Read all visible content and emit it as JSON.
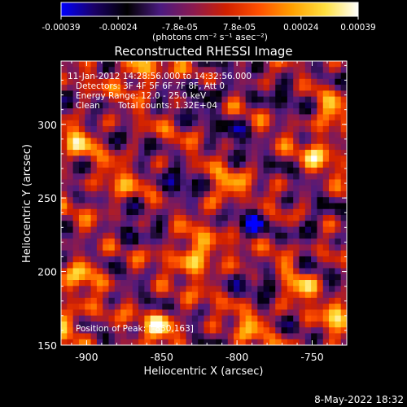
{
  "chart_data": {
    "type": "heatmap",
    "title": "Reconstructed RHESSI Image",
    "xlabel": "Heliocentric X (arcsec)",
    "ylabel": "Heliocentric Y (arcsec)",
    "xlim": [
      -917,
      -727
    ],
    "ylim": [
      150,
      343
    ],
    "x_ticks": [
      -900,
      -850,
      -800,
      -750
    ],
    "y_ticks": [
      150,
      200,
      250,
      300
    ],
    "grid_cols": 48,
    "grid_rows": 48,
    "colorbar": {
      "range": [
        -0.00039,
        0.00039
      ],
      "tick_values": [
        -0.00039,
        -0.00024,
        -7.8e-05,
        7.8e-05,
        0.00024,
        0.00039
      ],
      "tick_labels": [
        "-0.00039",
        "-0.00024",
        "-7.8e-05",
        "7.8e-05",
        "0.00024",
        "0.00039"
      ],
      "units": "(photons cm⁻² s⁻¹ asec⁻²)"
    },
    "colormap": [
      "#0000ff",
      "#1a0066",
      "#000000",
      "#4a1a80",
      "#8a1a50",
      "#d02000",
      "#ff5000",
      "#ffa000",
      "#ffe040",
      "#ffffff"
    ],
    "hotspots": [
      {
        "x": -850,
        "y": 163,
        "amplitude": 1.0
      },
      {
        "x": -865,
        "y": 335,
        "amplitude": 0.95
      },
      {
        "x": -900,
        "y": 200,
        "amplitude": 0.8
      },
      {
        "x": -912,
        "y": 165,
        "amplitude": 0.85
      },
      {
        "x": -832,
        "y": 215,
        "amplitude": 0.85
      },
      {
        "x": -822,
        "y": 205,
        "amplitude": 0.7
      },
      {
        "x": -808,
        "y": 255,
        "amplitude": 0.75
      },
      {
        "x": -772,
        "y": 210,
        "amplitude": 0.7
      },
      {
        "x": -745,
        "y": 280,
        "amplitude": 0.7
      },
      {
        "x": -737,
        "y": 305,
        "amplitude": 0.75
      },
      {
        "x": -758,
        "y": 190,
        "amplitude": 0.7
      },
      {
        "x": -735,
        "y": 165,
        "amplitude": 0.75
      },
      {
        "x": -882,
        "y": 258,
        "amplitude": 0.6
      },
      {
        "x": -905,
        "y": 290,
        "amplitude": 0.7
      },
      {
        "x": -790,
        "y": 165,
        "amplitude": 0.6
      }
    ],
    "coldspots": [
      {
        "x": -820,
        "y": 320,
        "amplitude": -0.7
      },
      {
        "x": -840,
        "y": 255,
        "amplitude": -0.6
      },
      {
        "x": -790,
        "y": 235,
        "amplitude": -0.55
      },
      {
        "x": -780,
        "y": 197,
        "amplitude": -0.8
      },
      {
        "x": -755,
        "y": 228,
        "amplitude": -0.6
      },
      {
        "x": -873,
        "y": 225,
        "amplitude": -0.5
      },
      {
        "x": -800,
        "y": 295,
        "amplitude": -0.5
      },
      {
        "x": -765,
        "y": 323,
        "amplitude": -0.4
      }
    ],
    "annotations": {
      "time_range": "11-Jan-2012 14:28:56.000 to 14:32:56.000",
      "detectors": "Detectors: 3F 4F 5F 6F 7F 8F, Att 0",
      "energy_range": "Energy Range: 12.0 - 25.0 keV",
      "clean_label": "Clean",
      "total_counts": "Total counts: 1.32E+04",
      "peak": "Position of Peak: [-850,163]"
    }
  },
  "footer_timestamp": "8-May-2022 18:32"
}
